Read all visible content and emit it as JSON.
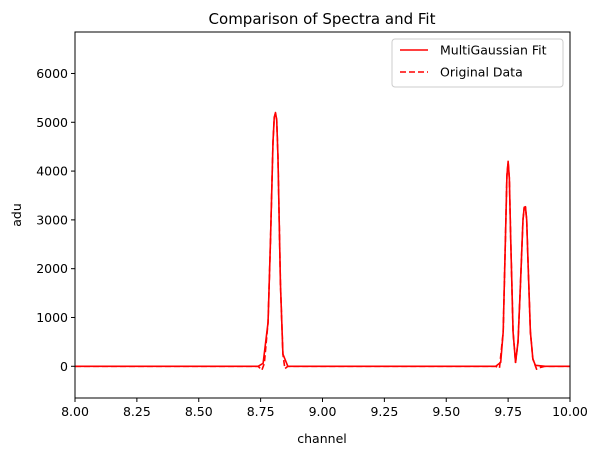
{
  "chart_data": {
    "type": "line",
    "title": "Comparison of Spectra and Fit",
    "xlabel": "channel",
    "ylabel": "adu",
    "xlim": [
      8.0,
      10.0
    ],
    "ylim": [
      -650,
      6850
    ],
    "xticks": [
      8.0,
      8.25,
      8.5,
      8.75,
      9.0,
      9.25,
      9.5,
      9.75,
      10.0
    ],
    "xtick_labels": [
      "8.00",
      "8.25",
      "8.50",
      "8.75",
      "9.00",
      "9.25",
      "9.50",
      "9.75",
      "10.00"
    ],
    "yticks": [
      0,
      1000,
      2000,
      3000,
      4000,
      5000,
      6000
    ],
    "ytick_labels": [
      "0",
      "1000",
      "2000",
      "3000",
      "4000",
      "5000",
      "6000"
    ],
    "grid": false,
    "legend_position": "top-right",
    "series": [
      {
        "name": "MultiGaussian Fit",
        "style": "solid",
        "color": "#ff0000",
        "x": [
          8.0,
          8.74,
          8.76,
          8.78,
          8.79,
          8.8,
          8.805,
          8.81,
          8.815,
          8.82,
          8.83,
          8.84,
          8.86,
          8.9,
          9.7,
          9.72,
          9.73,
          9.74,
          9.745,
          9.75,
          9.755,
          9.76,
          9.77,
          9.78,
          9.79,
          9.8,
          9.81,
          9.815,
          9.82,
          9.825,
          9.83,
          9.84,
          9.85,
          9.86,
          9.9,
          10.0
        ],
        "y": [
          0,
          0,
          60,
          900,
          2600,
          4600,
          5100,
          5200,
          5050,
          4300,
          1700,
          250,
          0,
          0,
          0,
          80,
          700,
          2800,
          3900,
          4200,
          3850,
          2700,
          700,
          80,
          500,
          1700,
          3000,
          3260,
          3270,
          3000,
          2200,
          700,
          150,
          20,
          0,
          0
        ]
      },
      {
        "name": "Original Data",
        "style": "dashed",
        "color": "#ff0000",
        "x": [
          8.0,
          8.74,
          8.755,
          8.765,
          8.78,
          8.79,
          8.8,
          8.805,
          8.81,
          8.815,
          8.82,
          8.83,
          8.84,
          8.848,
          8.86,
          8.9,
          9.7,
          9.715,
          9.73,
          9.74,
          9.745,
          9.75,
          9.755,
          9.76,
          9.77,
          9.78,
          9.79,
          9.8,
          9.81,
          9.815,
          9.82,
          9.825,
          9.83,
          9.84,
          9.85,
          9.865,
          9.875,
          9.9,
          10.0
        ],
        "y": [
          0,
          0,
          -80,
          60,
          900,
          2600,
          4600,
          5100,
          5180,
          5050,
          4300,
          1700,
          250,
          -50,
          0,
          0,
          0,
          -40,
          700,
          2800,
          3900,
          4180,
          3850,
          2700,
          700,
          80,
          500,
          1700,
          3000,
          3250,
          3260,
          3000,
          2200,
          700,
          150,
          -60,
          -30,
          0,
          0
        ]
      }
    ]
  }
}
